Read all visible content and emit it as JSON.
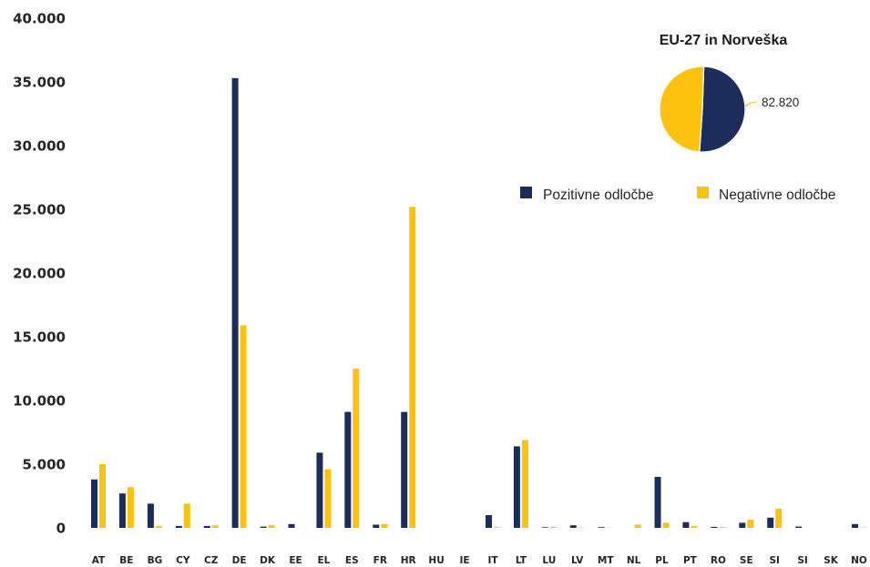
{
  "chart_data": [
    {
      "type": "bar",
      "categories": [
        "AT",
        "BE",
        "BG",
        "CY",
        "CZ",
        "DE",
        "DK",
        "EE",
        "EL",
        "ES",
        "FR",
        "HR",
        "HU",
        "IE",
        "IT",
        "LT",
        "LU",
        "LV",
        "MT",
        "NL",
        "PL",
        "PT",
        "RO",
        "SE",
        "SI",
        "SI",
        "SK",
        "NO"
      ],
      "series": [
        {
          "name": "Pozitivne odločbe",
          "color": "#1c2d5c",
          "values": [
            3800,
            2700,
            1900,
            150,
            150,
            35300,
            100,
            300,
            5900,
            9100,
            250,
            9100,
            0,
            0,
            1000,
            6400,
            50,
            200,
            60,
            0,
            4000,
            450,
            80,
            400,
            800,
            100,
            0,
            300
          ]
        },
        {
          "name": "Negativne odločbe",
          "color": "#fdc210",
          "values": [
            5000,
            3200,
            150,
            1900,
            200,
            15900,
            200,
            0,
            4600,
            12500,
            300,
            25200,
            0,
            0,
            50,
            6900,
            80,
            30,
            20,
            250,
            400,
            150,
            60,
            650,
            1500,
            0,
            0,
            30
          ]
        }
      ],
      "ylim": [
        0,
        40000
      ],
      "yticks": [
        0,
        5000,
        10000,
        15000,
        20000,
        25000,
        30000,
        35000,
        40000
      ],
      "ytick_labels": [
        "0",
        "5.000",
        "10.000",
        "15.000",
        "20.000",
        "25.000",
        "30.000",
        "35.000",
        "40.000"
      ],
      "grid": false,
      "legend": "top-right"
    },
    {
      "type": "pie",
      "title": "EU-27 in Norveška",
      "slices": [
        {
          "share": 0.505,
          "color": "#1c2d5c",
          "label": "82.820"
        },
        {
          "share": 0.495,
          "color": "#fdc210",
          "label": ""
        }
      ]
    }
  ]
}
